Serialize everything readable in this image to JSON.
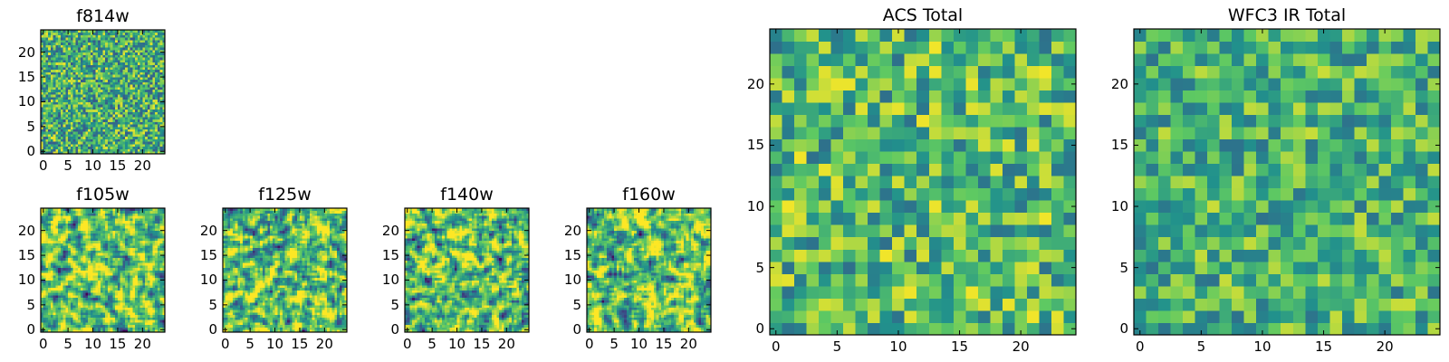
{
  "figure": {
    "colormap": "viridis",
    "colormap_stops": [
      "#440154",
      "#3b528b",
      "#21918c",
      "#5ec962",
      "#fde725"
    ],
    "frame_color": "#000000"
  },
  "chart_data": [
    {
      "id": "f814w",
      "type": "heatmap",
      "title": "f814w",
      "grid_size": [
        50,
        50
      ],
      "pixel_scale": 0.5,
      "xlim": [
        -0.5,
        24.5
      ],
      "ylim": [
        -0.5,
        24.5
      ],
      "xticks": [
        0,
        5,
        10,
        15,
        20
      ],
      "yticks": [
        0,
        5,
        10,
        15,
        20
      ],
      "value_range": [
        0,
        1
      ],
      "seed": 814,
      "smoothing": 0,
      "mean": 0.62,
      "spread": 0.2
    },
    {
      "id": "f105w",
      "type": "heatmap",
      "title": "f105w",
      "grid_size": [
        50,
        50
      ],
      "pixel_scale": 0.5,
      "xlim": [
        -0.5,
        24.5
      ],
      "ylim": [
        -0.5,
        24.5
      ],
      "xticks": [
        0,
        5,
        10,
        15,
        20
      ],
      "yticks": [
        0,
        5,
        10,
        15,
        20
      ],
      "value_range": [
        0,
        1
      ],
      "seed": 105,
      "smoothing": 1,
      "mean": 0.72,
      "spread": 0.22
    },
    {
      "id": "f125w",
      "type": "heatmap",
      "title": "f125w",
      "grid_size": [
        50,
        50
      ],
      "pixel_scale": 0.5,
      "xlim": [
        -0.5,
        24.5
      ],
      "ylim": [
        -0.5,
        24.5
      ],
      "xticks": [
        0,
        5,
        10,
        15,
        20
      ],
      "yticks": [
        0,
        5,
        10,
        15,
        20
      ],
      "value_range": [
        0,
        1
      ],
      "seed": 125,
      "smoothing": 1,
      "mean": 0.7,
      "spread": 0.22
    },
    {
      "id": "f140w",
      "type": "heatmap",
      "title": "f140w",
      "grid_size": [
        50,
        50
      ],
      "pixel_scale": 0.5,
      "xlim": [
        -0.5,
        24.5
      ],
      "ylim": [
        -0.5,
        24.5
      ],
      "xticks": [
        0,
        5,
        10,
        15,
        20
      ],
      "yticks": [
        0,
        5,
        10,
        15,
        20
      ],
      "value_range": [
        0,
        1
      ],
      "seed": 140,
      "smoothing": 1,
      "mean": 0.7,
      "spread": 0.22
    },
    {
      "id": "f160w",
      "type": "heatmap",
      "title": "f160w",
      "grid_size": [
        50,
        50
      ],
      "pixel_scale": 0.5,
      "xlim": [
        -0.5,
        24.5
      ],
      "ylim": [
        -0.5,
        24.5
      ],
      "xticks": [
        0,
        5,
        10,
        15,
        20
      ],
      "yticks": [
        0,
        5,
        10,
        15,
        20
      ],
      "value_range": [
        0,
        1
      ],
      "seed": 160,
      "smoothing": 1,
      "mean": 0.72,
      "spread": 0.22
    },
    {
      "id": "acs-total",
      "type": "heatmap",
      "title": "ACS Total",
      "grid_size": [
        25,
        25
      ],
      "pixel_scale": 1,
      "xlim": [
        -0.5,
        24.5
      ],
      "ylim": [
        -0.5,
        24.5
      ],
      "xticks": [
        0,
        5,
        10,
        15,
        20
      ],
      "yticks": [
        0,
        5,
        10,
        15,
        20
      ],
      "value_range": [
        0,
        1
      ],
      "seed": 4141,
      "smoothing": 0,
      "mean": 0.68,
      "spread": 0.18
    },
    {
      "id": "wfc3-ir-total",
      "type": "heatmap",
      "title": "WFC3 IR Total",
      "grid_size": [
        25,
        25
      ],
      "pixel_scale": 1,
      "xlim": [
        -0.5,
        24.5
      ],
      "ylim": [
        -0.5,
        24.5
      ],
      "xticks": [
        0,
        5,
        10,
        15,
        20
      ],
      "yticks": [
        0,
        5,
        10,
        15,
        20
      ],
      "value_range": [
        0,
        1
      ],
      "seed": 3131,
      "smoothing": 0,
      "mean": 0.64,
      "spread": 0.16
    }
  ]
}
